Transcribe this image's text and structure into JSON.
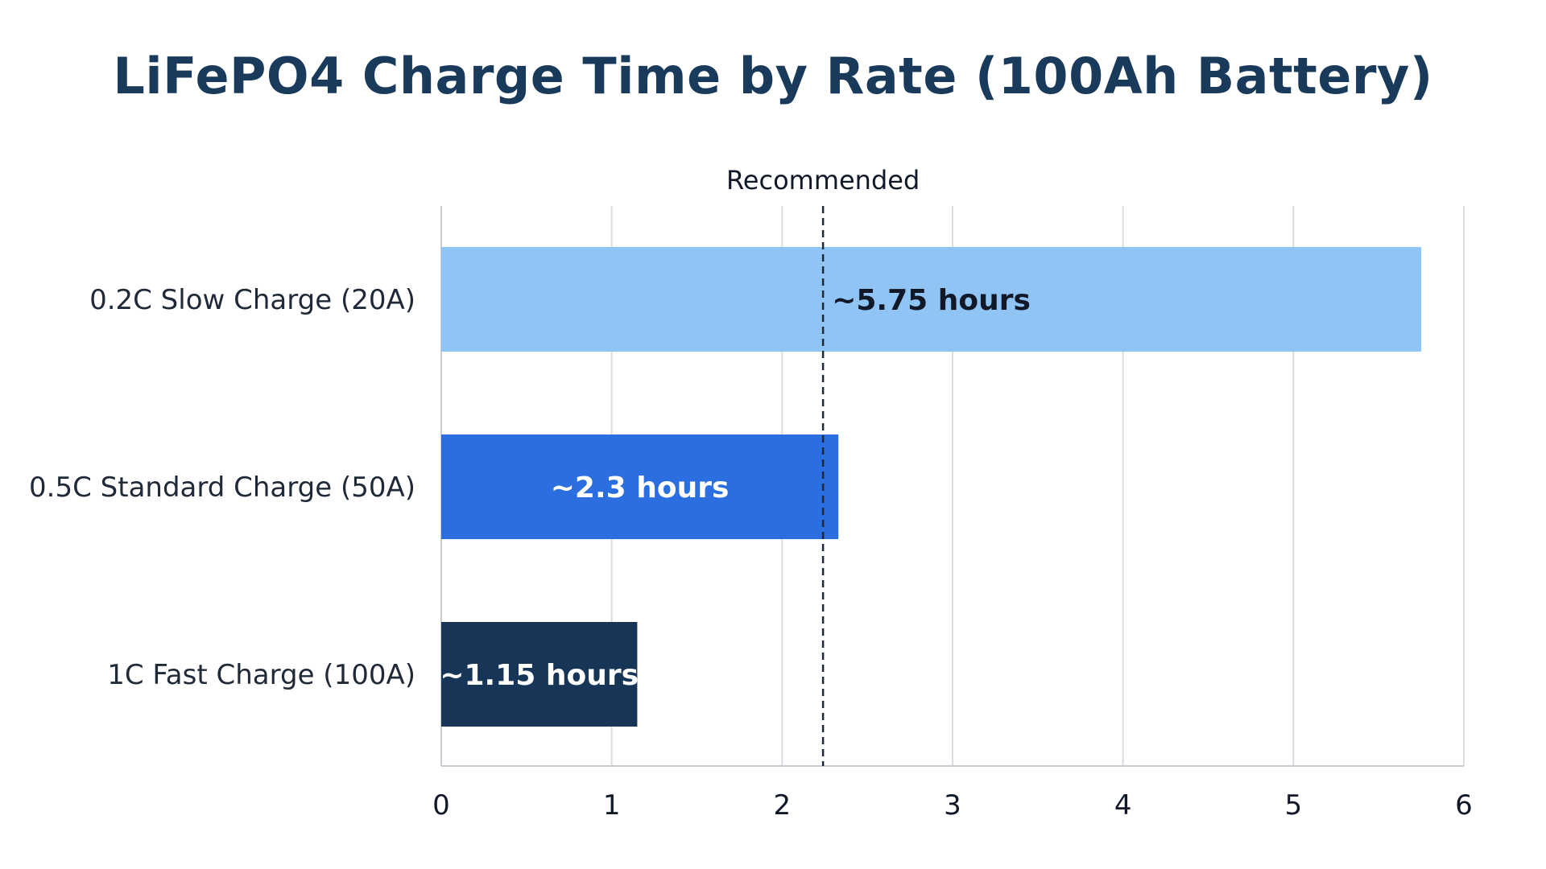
{
  "chart_data": {
    "type": "bar",
    "orientation": "horizontal",
    "title": "LiFePO4 Charge Time by Rate (100Ah Battery)",
    "categories": [
      "0.2C Slow Charge (20A)",
      "0.5C Standard Charge (50A)",
      "1C Fast Charge (100A)"
    ],
    "values": [
      5.75,
      2.33,
      1.15
    ],
    "data_labels": [
      "~5.75 hours",
      "~2.3 hours",
      "~1.15 hours"
    ],
    "bar_colors": [
      "#90c4f5",
      "#2a6ee0",
      "#173556"
    ],
    "label_colors": [
      "#111827",
      "#ffffff",
      "#ffffff"
    ],
    "xlim": [
      0,
      6
    ],
    "xticks": [
      0,
      1,
      2,
      3,
      4,
      5,
      6
    ],
    "grid": true,
    "reference_line": {
      "value": 2.24,
      "label": "Recommended",
      "style": "dashed"
    }
  }
}
